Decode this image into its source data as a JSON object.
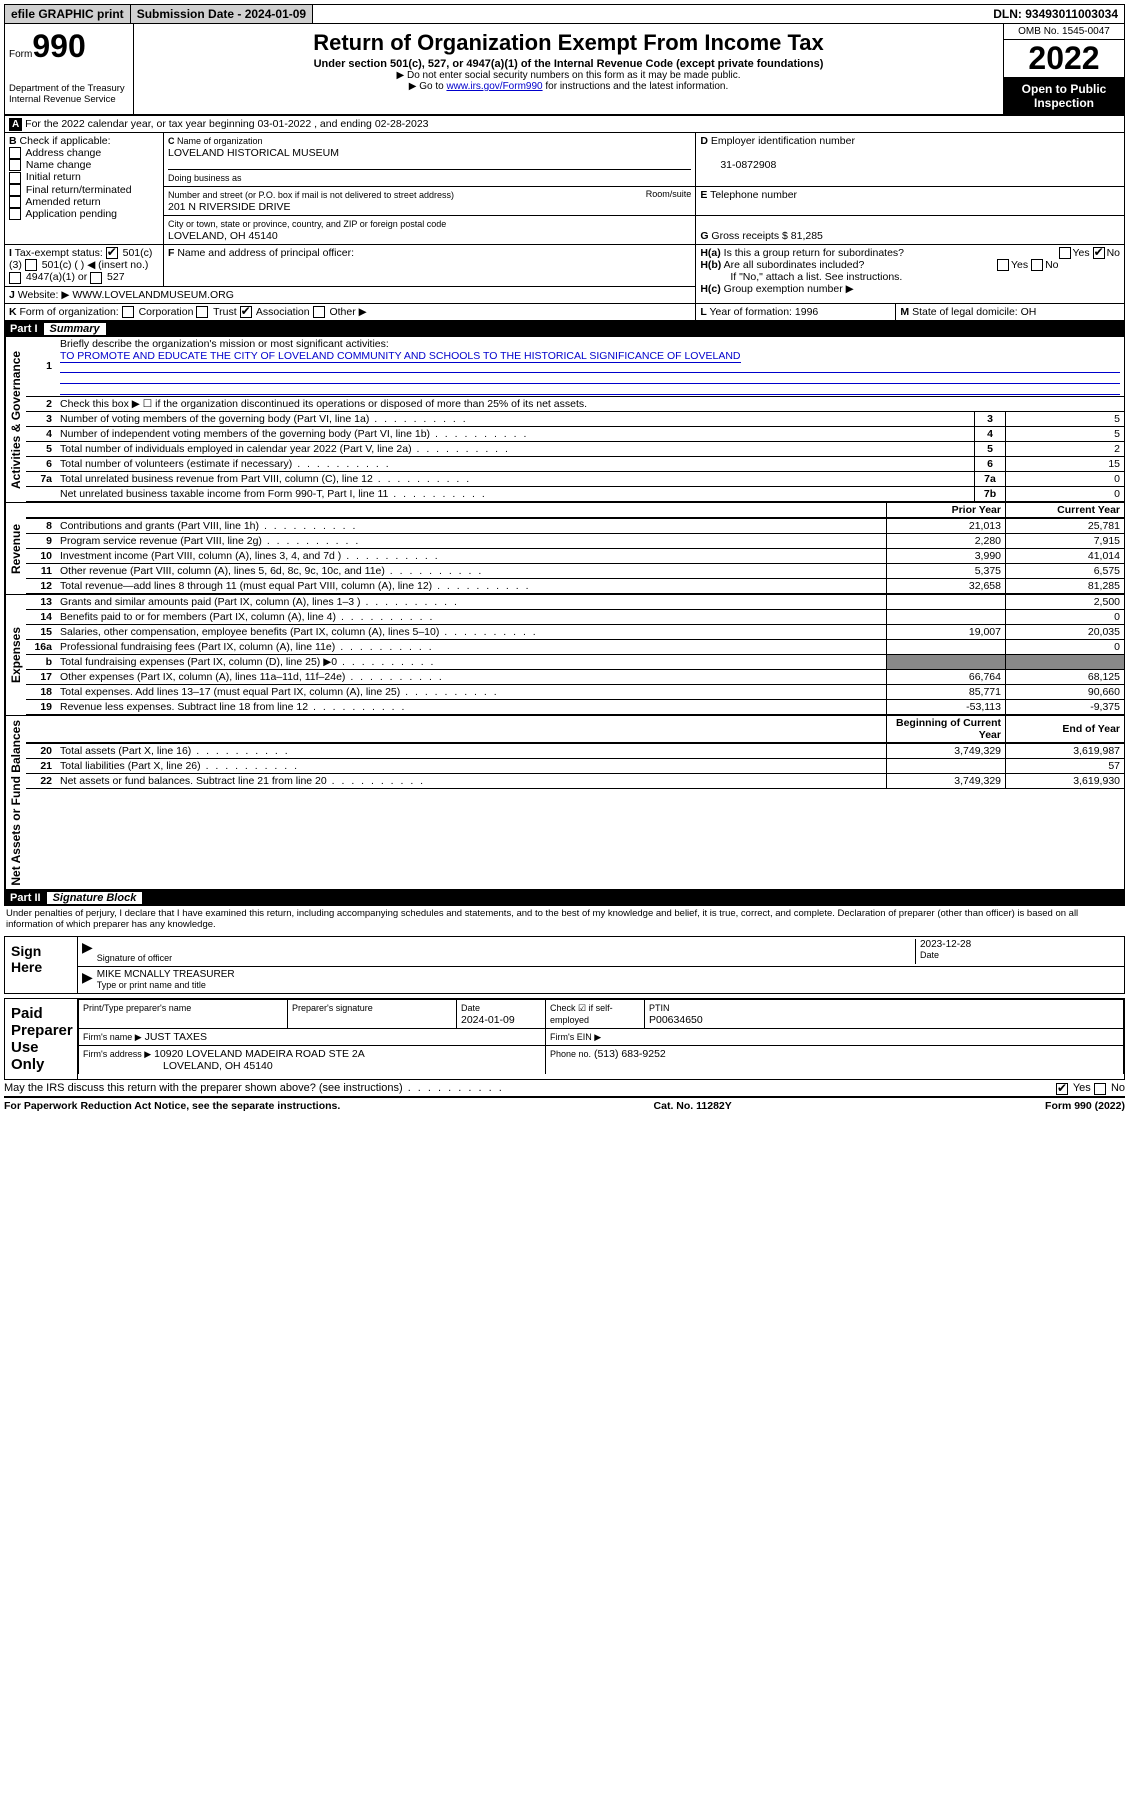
{
  "topbar": {
    "efile": "efile GRAPHIC print",
    "submission_label": "Submission Date - 2024-01-09",
    "dln": "DLN: 93493011003034"
  },
  "header": {
    "form_word": "Form",
    "form_num": "990",
    "dept": "Department of the Treasury",
    "irs": "Internal Revenue Service",
    "title": "Return of Organization Exempt From Income Tax",
    "sub": "Under section 501(c), 527, or 4947(a)(1) of the Internal Revenue Code (except private foundations)",
    "note1": "▶ Do not enter social security numbers on this form as it may be made public.",
    "note2_pre": "▶ Go to ",
    "note2_link": "www.irs.gov/Form990",
    "note2_post": " for instructions and the latest information.",
    "omb": "OMB No. 1545-0047",
    "year": "2022",
    "inspection": "Open to Public Inspection"
  },
  "A": {
    "line": "For the 2022 calendar year, or tax year beginning 03-01-2022   , and ending 02-28-2023"
  },
  "B": {
    "label": "Check if applicable:",
    "opts": [
      "Address change",
      "Name change",
      "Initial return",
      "Final return/terminated",
      "Amended return",
      "Application pending"
    ]
  },
  "C": {
    "label": "Name of organization",
    "name": "LOVELAND HISTORICAL MUSEUM",
    "dba_label": "Doing business as",
    "street_label": "Number and street (or P.O. box if mail is not delivered to street address)",
    "room_label": "Room/suite",
    "street": "201 N RIVERSIDE DRIVE",
    "city_label": "City or town, state or province, country, and ZIP or foreign postal code",
    "city": "LOVELAND, OH  45140"
  },
  "D": {
    "label": "Employer identification number",
    "ein": "31-0872908"
  },
  "E": {
    "label": "Telephone number"
  },
  "G": {
    "label": "Gross receipts $",
    "val": "81,285"
  },
  "F": {
    "label": "Name and address of principal officer:"
  },
  "H": {
    "a": "Is this a group return for subordinates?",
    "b": "Are all subordinates included?",
    "note": "If \"No,\" attach a list. See instructions.",
    "c": "Group exemption number ▶",
    "yes": "Yes",
    "no": "No"
  },
  "I": {
    "label": "Tax-exempt status:",
    "o1": "501(c)(3)",
    "o2": "501(c) (  ) ◀ (insert no.)",
    "o3": "4947(a)(1) or",
    "o4": "527"
  },
  "J": {
    "label": "Website: ▶",
    "val": "WWW.LOVELANDMUSEUM.ORG"
  },
  "K": {
    "label": "Form of organization:",
    "o1": "Corporation",
    "o2": "Trust",
    "o3": "Association",
    "o4": "Other ▶"
  },
  "L": {
    "label": "Year of formation:",
    "val": "1996"
  },
  "M": {
    "label": "State of legal domicile:",
    "val": "OH"
  },
  "part1": {
    "hdr": "Part I",
    "title": "Summary",
    "q1": "Briefly describe the organization's mission or most significant activities:",
    "q1a": "TO PROMOTE AND EDUCATE THE CITY OF LOVELAND COMMUNITY AND SCHOOLS TO THE HISTORICAL SIGNIFICANCE OF LOVELAND",
    "q2": "Check this box ▶ ☐  if the organization discontinued its operations or disposed of more than 25% of its net assets.",
    "rows_gov": [
      {
        "n": "3",
        "t": "Number of voting members of the governing body (Part VI, line 1a)",
        "box": "3",
        "v": "5"
      },
      {
        "n": "4",
        "t": "Number of independent voting members of the governing body (Part VI, line 1b)",
        "box": "4",
        "v": "5"
      },
      {
        "n": "5",
        "t": "Total number of individuals employed in calendar year 2022 (Part V, line 2a)",
        "box": "5",
        "v": "2"
      },
      {
        "n": "6",
        "t": "Total number of volunteers (estimate if necessary)",
        "box": "6",
        "v": "15"
      },
      {
        "n": "7a",
        "t": "Total unrelated business revenue from Part VIII, column (C), line 12",
        "box": "7a",
        "v": "0"
      },
      {
        "n": "",
        "t": "Net unrelated business taxable income from Form 990-T, Part I, line 11",
        "box": "7b",
        "v": "0"
      }
    ],
    "prior": "Prior Year",
    "current": "Current Year",
    "rows_rev": [
      {
        "n": "8",
        "t": "Contributions and grants (Part VIII, line 1h)",
        "p": "21,013",
        "c": "25,781"
      },
      {
        "n": "9",
        "t": "Program service revenue (Part VIII, line 2g)",
        "p": "2,280",
        "c": "7,915"
      },
      {
        "n": "10",
        "t": "Investment income (Part VIII, column (A), lines 3, 4, and 7d )",
        "p": "3,990",
        "c": "41,014"
      },
      {
        "n": "11",
        "t": "Other revenue (Part VIII, column (A), lines 5, 6d, 8c, 9c, 10c, and 11e)",
        "p": "5,375",
        "c": "6,575"
      },
      {
        "n": "12",
        "t": "Total revenue—add lines 8 through 11 (must equal Part VIII, column (A), line 12)",
        "p": "32,658",
        "c": "81,285"
      }
    ],
    "rows_exp": [
      {
        "n": "13",
        "t": "Grants and similar amounts paid (Part IX, column (A), lines 1–3 )",
        "p": "",
        "c": "2,500"
      },
      {
        "n": "14",
        "t": "Benefits paid to or for members (Part IX, column (A), line 4)",
        "p": "",
        "c": "0"
      },
      {
        "n": "15",
        "t": "Salaries, other compensation, employee benefits (Part IX, column (A), lines 5–10)",
        "p": "19,007",
        "c": "20,035"
      },
      {
        "n": "16a",
        "t": "Professional fundraising fees (Part IX, column (A), line 11e)",
        "p": "",
        "c": "0"
      },
      {
        "n": "b",
        "t": "Total fundraising expenses (Part IX, column (D), line 25) ▶0",
        "p": "",
        "c": "",
        "nofill": true
      },
      {
        "n": "17",
        "t": "Other expenses (Part IX, column (A), lines 11a–11d, 11f–24e)",
        "p": "66,764",
        "c": "68,125"
      },
      {
        "n": "18",
        "t": "Total expenses. Add lines 13–17 (must equal Part IX, column (A), line 25)",
        "p": "85,771",
        "c": "90,660"
      },
      {
        "n": "19",
        "t": "Revenue less expenses. Subtract line 18 from line 12",
        "p": "-53,113",
        "c": "-9,375"
      }
    ],
    "begin": "Beginning of Current Year",
    "end": "End of Year",
    "rows_net": [
      {
        "n": "20",
        "t": "Total assets (Part X, line 16)",
        "p": "3,749,329",
        "c": "3,619,987"
      },
      {
        "n": "21",
        "t": "Total liabilities (Part X, line 26)",
        "p": "",
        "c": "57"
      },
      {
        "n": "22",
        "t": "Net assets or fund balances. Subtract line 21 from line 20",
        "p": "3,749,329",
        "c": "3,619,930"
      }
    ]
  },
  "sections": {
    "gov": "Activities & Governance",
    "rev": "Revenue",
    "exp": "Expenses",
    "net": "Net Assets or Fund Balances"
  },
  "part2": {
    "hdr": "Part II",
    "title": "Signature Block",
    "decl": "Under penalties of perjury, I declare that I have examined this return, including accompanying schedules and statements, and to the best of my knowledge and belief, it is true, correct, and complete. Declaration of preparer (other than officer) is based on all information of which preparer has any knowledge."
  },
  "sign": {
    "here": "Sign Here",
    "sig_label": "Signature of officer",
    "date": "2023-12-28",
    "date_label": "Date",
    "name": "MIKE MCNALLY TREASURER",
    "name_label": "Type or print name and title"
  },
  "paid": {
    "label": "Paid Preparer Use Only",
    "c1": "Print/Type preparer's name",
    "c2": "Preparer's signature",
    "c3": "Date",
    "c3v": "2024-01-09",
    "c4": "Check ☑ if self-employed",
    "c5": "PTIN",
    "c5v": "P00634650",
    "firm_label": "Firm's name   ▶",
    "firm": "JUST TAXES",
    "ein_label": "Firm's EIN ▶",
    "addr_label": "Firm's address ▶",
    "addr1": "10920 LOVELAND MADEIRA ROAD STE 2A",
    "addr2": "LOVELAND, OH  45140",
    "phone_label": "Phone no.",
    "phone": "(513) 683-9252"
  },
  "bottom": {
    "q": "May the IRS discuss this return with the preparer shown above? (see instructions)",
    "yes": "Yes",
    "no": "No",
    "paperwork": "For Paperwork Reduction Act Notice, see the separate instructions.",
    "cat": "Cat. No. 11282Y",
    "form": "Form 990 (2022)"
  }
}
